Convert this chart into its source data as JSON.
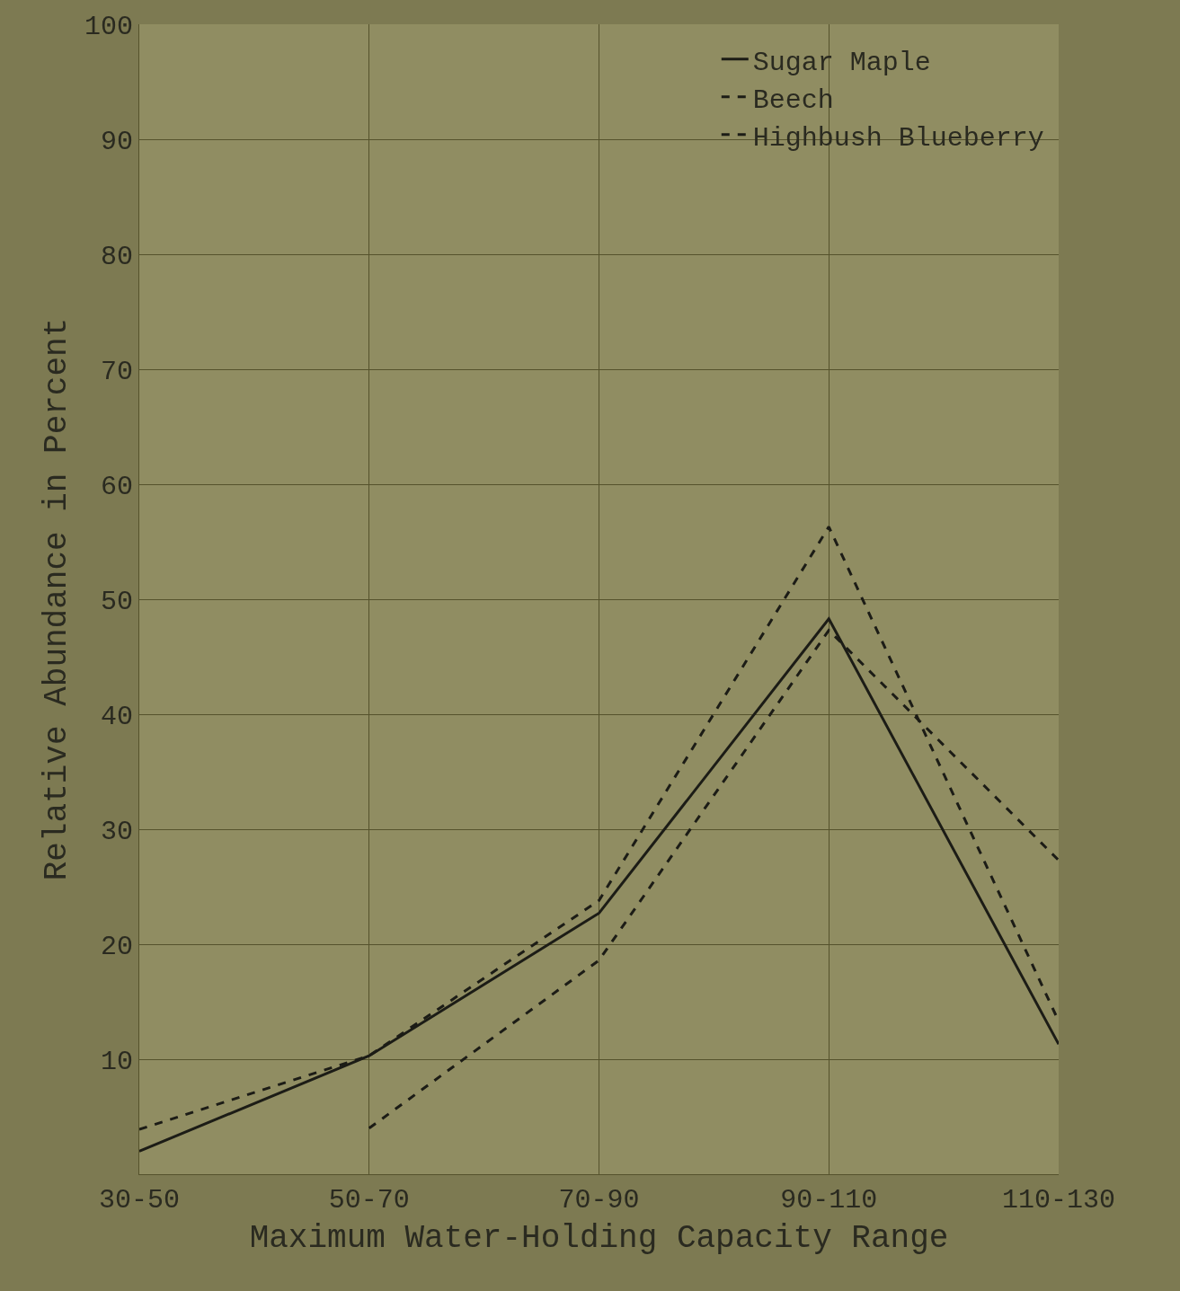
{
  "chart_data": {
    "type": "line",
    "xlabel": "Maximum Water-Holding Capacity Range",
    "ylabel": "Relative Abundance in Percent",
    "categories": [
      "30-50",
      "50-70",
      "70-90",
      "90-110",
      "110-130"
    ],
    "series": [
      {
        "name": "Sugar Maple",
        "color": "#1c1c16",
        "line_style": "solid",
        "values": [
          2,
          10.3,
          22.7,
          48.3,
          11.3
        ]
      },
      {
        "name": "Beech",
        "color": "#1c1c16",
        "line_style": "dashed",
        "values": [
          null,
          4,
          18.6,
          47.3,
          27.3
        ]
      },
      {
        "name": "Highbush Blueberry",
        "color": "#1c1c16",
        "line_style": "dashed",
        "values": [
          3.9,
          10.3,
          23.8,
          56.3,
          13.3
        ]
      }
    ],
    "ylim": [
      0,
      100
    ],
    "yticks": [
      10,
      20,
      30,
      40,
      50,
      60,
      70,
      80,
      90,
      100
    ],
    "grid": true,
    "legend": "top right",
    "marker": "none"
  }
}
